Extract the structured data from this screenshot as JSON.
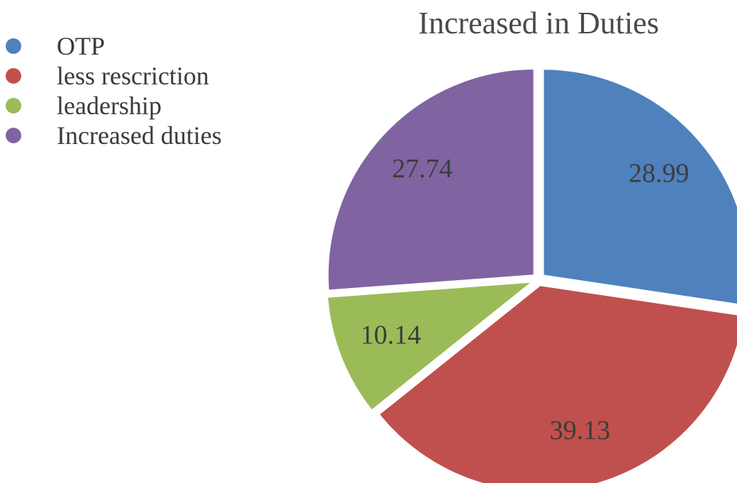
{
  "chart_data": {
    "type": "pie",
    "title": "Increased in Duties",
    "legend_position": "top-left",
    "slices": [
      {
        "name": "OTP",
        "value": 28.99,
        "label": "28.99",
        "color": "#4f81bd"
      },
      {
        "name": " less rescriction",
        "value": 39.13,
        "label": "39.13",
        "color": "#c0504d"
      },
      {
        "name": "leadership",
        "value": 10.14,
        "label": "10.14",
        "color": "#9bbb59"
      },
      {
        "name": "Increased duties",
        "value": 27.74,
        "label": "27.74",
        "color": "#8064a2"
      }
    ]
  }
}
